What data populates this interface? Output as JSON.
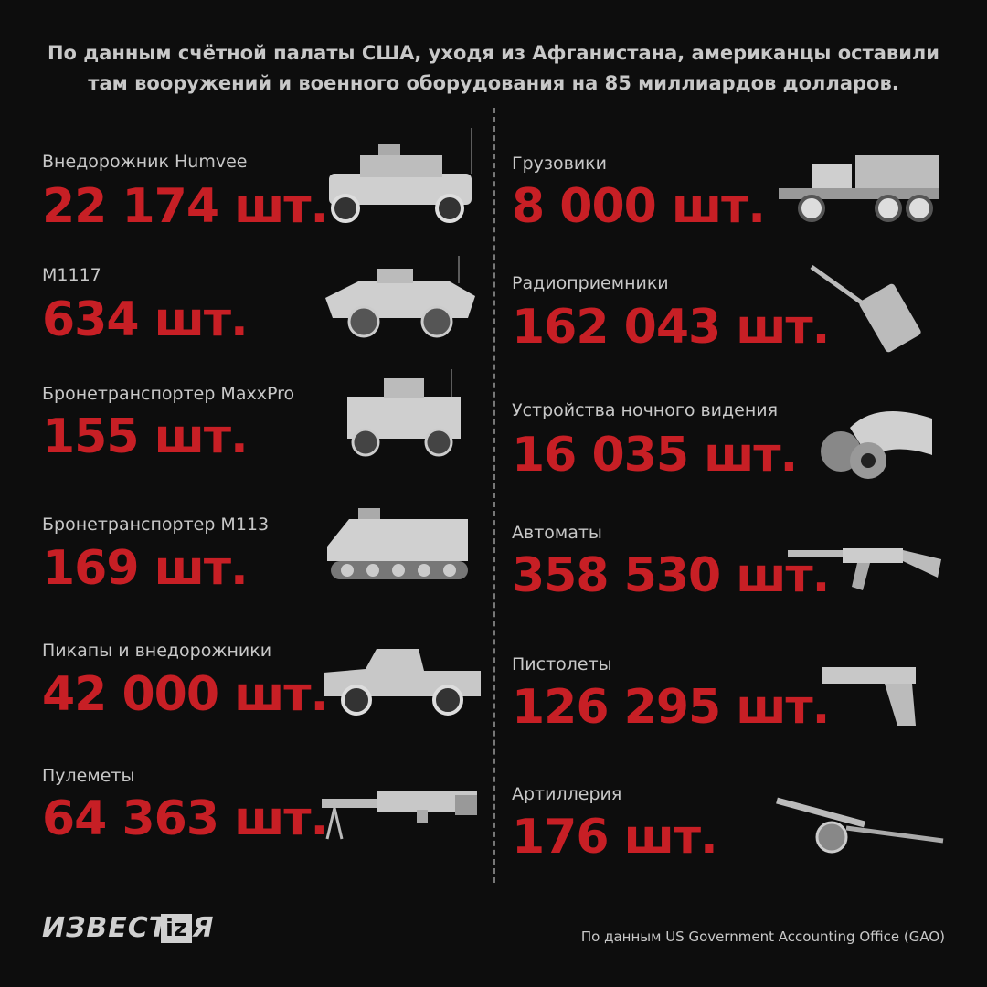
{
  "header": {
    "title": "По данным счётной палаты США, уходя из Афганистана, американцы оставили там вооружений и военного оборудования на 85 миллиардов долларов."
  },
  "items": [
    {
      "label": "Внедорожник Humvee",
      "count": "22 174 шт."
    },
    {
      "label": "M1117",
      "count": "634 шт."
    },
    {
      "label": "Бронетранспортер MaxxPro",
      "count": "155 шт."
    },
    {
      "label": "Бронетранспортер M113",
      "count": "169 шт."
    },
    {
      "label": "Пикапы и внедорожники",
      "count": "42 000 шт."
    },
    {
      "label": "Пулеметы",
      "count": "64 363 шт."
    },
    {
      "label": "Грузовики",
      "count": "8 000 шт."
    },
    {
      "label": "Радиоприемники",
      "count": "162 043 шт."
    },
    {
      "label": "Устройства ночного видения",
      "count": "16 035 шт."
    },
    {
      "label": "Автоматы",
      "count": "358 530 шт."
    },
    {
      "label": "Пистолеты",
      "count": "126 295 шт."
    },
    {
      "label": "Артиллерия",
      "count": "176 шт."
    }
  ],
  "footer": {
    "logo": "ИЗВЕСТИЯ",
    "logo_mark": "iz",
    "source": "По данным US Government Accounting Office (GAO)"
  }
}
